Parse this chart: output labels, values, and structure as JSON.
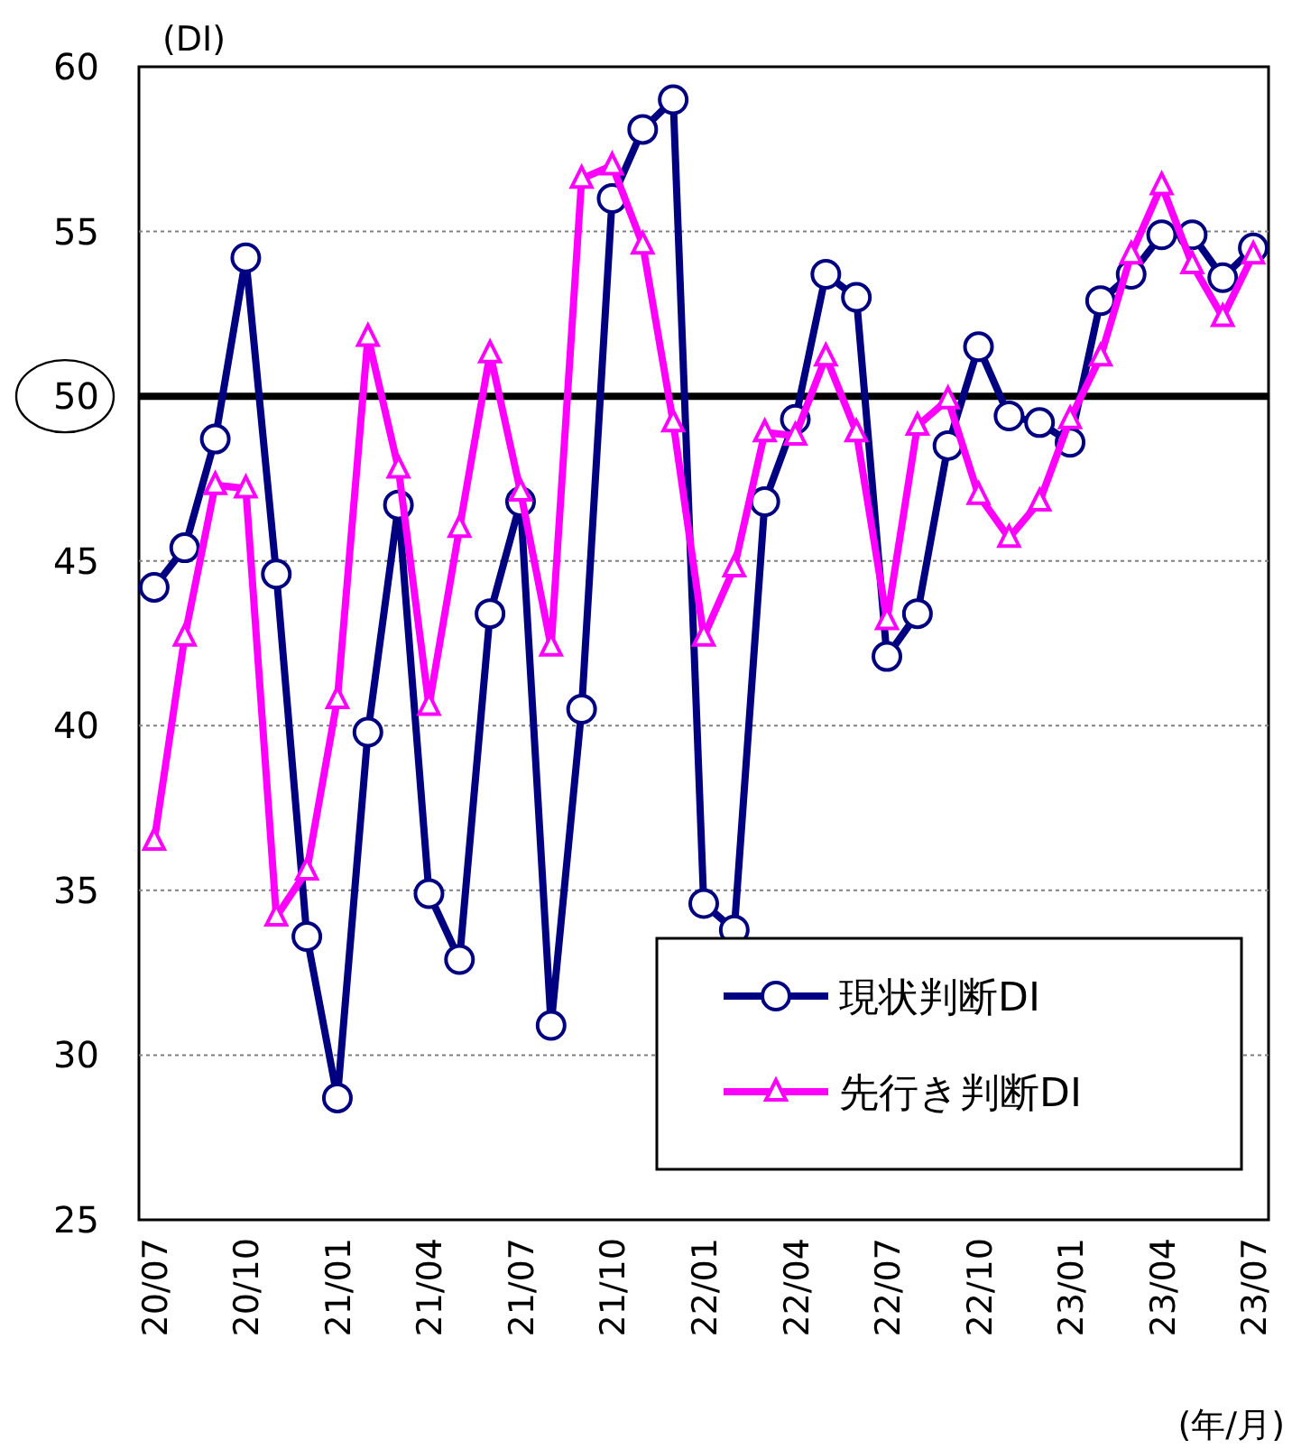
{
  "chart_data": {
    "type": "line",
    "ylabel": "(DI)",
    "xlabel": "(年/月)",
    "categories": [
      "20/07",
      null,
      null,
      "20/10",
      null,
      null,
      "21/01",
      null,
      null,
      "21/04",
      null,
      null,
      "21/07",
      null,
      null,
      "21/10",
      null,
      null,
      "22/01",
      null,
      null,
      "22/04",
      null,
      null,
      "22/07",
      null,
      null,
      "22/10",
      null,
      null,
      "23/01",
      null,
      null,
      "23/04",
      null,
      null,
      "23/07"
    ],
    "series": [
      {
        "name": "現状判断DI",
        "color": "#000080",
        "marker": "circle",
        "values": [
          44.2,
          45.4,
          48.7,
          54.2,
          44.6,
          33.6,
          28.7,
          39.8,
          46.7,
          34.9,
          32.9,
          43.4,
          46.8,
          30.9,
          40.5,
          56.0,
          58.1,
          59.0,
          34.6,
          33.8,
          46.8,
          49.3,
          53.7,
          53.0,
          42.1,
          43.4,
          48.5,
          51.5,
          49.4,
          49.2,
          48.6,
          52.9,
          53.7,
          54.9,
          54.9,
          53.6,
          54.5
        ]
      },
      {
        "name": "先行き判断DI",
        "color": "#ff00ff",
        "marker": "triangle",
        "values": [
          36.5,
          42.7,
          47.3,
          47.2,
          34.2,
          35.6,
          40.8,
          51.8,
          47.8,
          40.6,
          46.0,
          51.3,
          47.1,
          42.4,
          56.6,
          57.0,
          54.6,
          49.2,
          42.7,
          44.8,
          48.9,
          48.8,
          51.2,
          48.9,
          43.2,
          49.1,
          49.9,
          47.0,
          45.7,
          46.8,
          49.3,
          51.2,
          54.3,
          56.4,
          54.0,
          52.4,
          54.3
        ]
      }
    ],
    "ylim": [
      25,
      60
    ],
    "yticks": [
      25,
      30,
      35,
      40,
      45,
      50,
      55,
      60
    ],
    "ref_lines": [
      {
        "axis": "y",
        "value": 50,
        "color": "#000000"
      }
    ],
    "grid": "y",
    "legend": "bottom right"
  }
}
